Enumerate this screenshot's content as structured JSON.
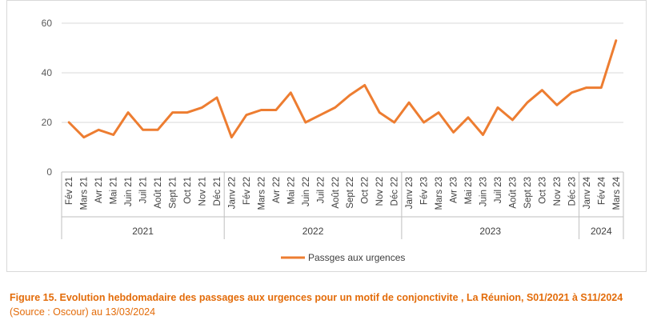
{
  "chart_data": {
    "type": "line",
    "categories": [
      "Fév 21",
      "Mars 21",
      "Avr 21",
      "Mai 21",
      "Juin 21",
      "Juil 21",
      "Août 21",
      "Sept 21",
      "Oct 21",
      "Nov 21",
      "Déc 21",
      "Janv 22",
      "Fév 22",
      "Mars 22",
      "Avr 22",
      "Mai 22",
      "Juin 22",
      "Juil 22",
      "Août 22",
      "Sept 22",
      "Oct 22",
      "Nov 22",
      "Déc 22",
      "Janv 23",
      "Fév 23",
      "Mars 23",
      "Avr 23",
      "Mai 23",
      "Juin 23",
      "Juil 23",
      "Août 23",
      "Sept 23",
      "Oct 23",
      "Nov 23",
      "Déc 23",
      "Janv 24",
      "Fév 24",
      "Mars 24"
    ],
    "series": [
      {
        "name": "Passges aux urgences",
        "values": [
          20,
          14,
          17,
          15,
          24,
          17,
          17,
          24,
          24,
          26,
          30,
          14,
          23,
          25,
          25,
          32,
          20,
          23,
          26,
          31,
          35,
          24,
          20,
          28,
          20,
          24,
          16,
          22,
          15,
          26,
          21,
          28,
          33,
          27,
          32,
          34,
          34,
          53
        ],
        "color": "#ed7d31"
      }
    ],
    "year_groups": [
      {
        "label": "2021",
        "count": 11
      },
      {
        "label": "2022",
        "count": 12
      },
      {
        "label": "2023",
        "count": 12
      },
      {
        "label": "2024",
        "count": 3
      }
    ],
    "yticks": [
      0,
      20,
      40,
      60
    ],
    "ylim": [
      0,
      60
    ],
    "legend_position": "bottom"
  },
  "caption": {
    "bold_part": "Figure 15. Evolution hebdomadaire des passages aux urgences pour un motif de conjonctivite , La Réunion, S01/2021 à S11/2024",
    "normal_part": " (Source : Oscour) au 13/03/2024"
  }
}
